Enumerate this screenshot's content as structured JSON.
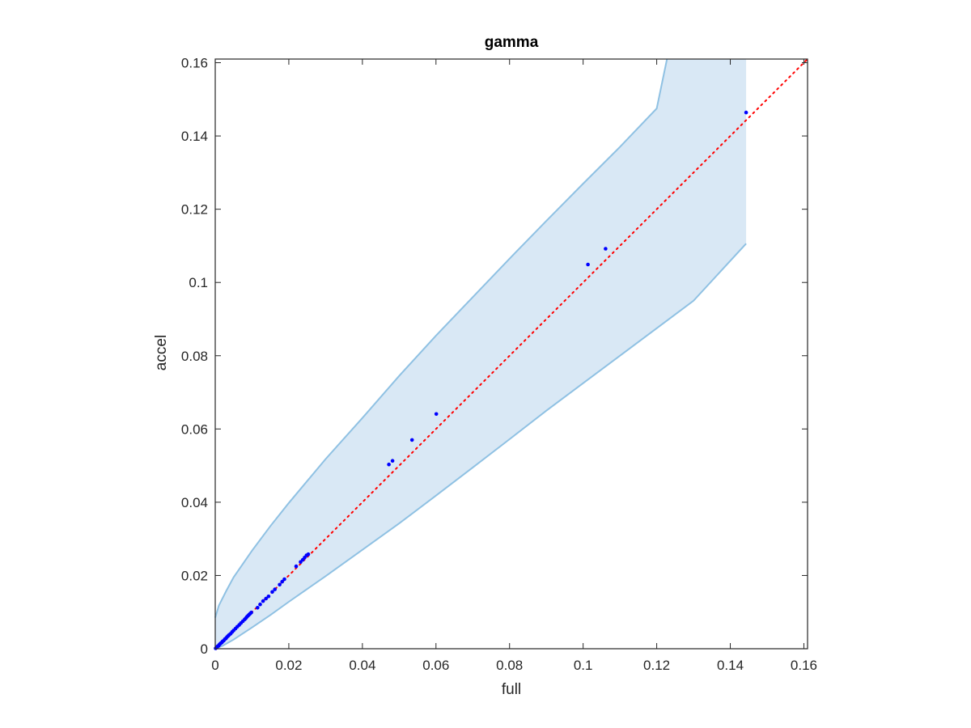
{
  "chart_data": {
    "type": "scatter",
    "title": "gamma",
    "xlabel": "full",
    "ylabel": "accel",
    "xlim": [
      0,
      0.161
    ],
    "ylim": [
      0,
      0.161
    ],
    "grid": false,
    "legend": "none",
    "xticks": [
      0,
      0.02,
      0.04,
      0.06,
      0.08,
      0.1,
      0.12,
      0.14,
      0.16
    ],
    "yticks": [
      0,
      0.02,
      0.04,
      0.06,
      0.08,
      0.1,
      0.12,
      0.14,
      0.16
    ],
    "xtick_labels": [
      "0",
      "0.02",
      "0.04",
      "0.06",
      "0.08",
      "0.1",
      "0.12",
      "0.14",
      "0.16"
    ],
    "ytick_labels": [
      "0",
      "0.02",
      "0.04",
      "0.06",
      "0.08",
      "0.1",
      "0.12",
      "0.14",
      "0.16"
    ],
    "confidence_band": {
      "color": "#d9e8f5",
      "edge_color": "#8fc1e3",
      "x_max": 0.1443,
      "upper": [
        [
          0,
          0.0085
        ],
        [
          0.001,
          0.0118
        ],
        [
          0.003,
          0.0158
        ],
        [
          0.005,
          0.0195
        ],
        [
          0.01,
          0.0268
        ],
        [
          0.015,
          0.0335
        ],
        [
          0.02,
          0.0398
        ],
        [
          0.03,
          0.0518
        ],
        [
          0.04,
          0.063
        ],
        [
          0.05,
          0.0745
        ],
        [
          0.06,
          0.0855
        ],
        [
          0.07,
          0.096
        ],
        [
          0.08,
          0.1065
        ],
        [
          0.09,
          0.1168
        ],
        [
          0.1,
          0.127
        ],
        [
          0.11,
          0.137
        ],
        [
          0.12,
          0.1475
        ],
        [
          0.1228,
          0.161
        ],
        [
          0.1443,
          0.161
        ]
      ],
      "lower": [
        [
          0,
          0
        ],
        [
          0.002,
          0.0008
        ],
        [
          0.005,
          0.0025
        ],
        [
          0.01,
          0.0058
        ],
        [
          0.015,
          0.0092
        ],
        [
          0.02,
          0.0128
        ],
        [
          0.03,
          0.0198
        ],
        [
          0.04,
          0.027
        ],
        [
          0.05,
          0.0342
        ],
        [
          0.06,
          0.0418
        ],
        [
          0.07,
          0.0495
        ],
        [
          0.08,
          0.0572
        ],
        [
          0.09,
          0.065
        ],
        [
          0.1,
          0.0725
        ],
        [
          0.11,
          0.08
        ],
        [
          0.12,
          0.0875
        ],
        [
          0.13,
          0.095
        ],
        [
          0.1443,
          0.1106
        ]
      ]
    },
    "reference_line": {
      "color": "#ff0000",
      "style": "dotted",
      "from": [
        0,
        0
      ],
      "to": [
        0.161,
        0.161
      ]
    },
    "series": [
      {
        "color": "#0000ff",
        "points": [
          [
            0.0001,
            0.0001
          ],
          [
            0.0003,
            0.0003
          ],
          [
            0.0005,
            0.0005
          ],
          [
            0.0007,
            0.0007
          ],
          [
            0.0009,
            0.0008
          ],
          [
            0.0011,
            0.0011
          ],
          [
            0.0013,
            0.0013
          ],
          [
            0.0015,
            0.0015
          ],
          [
            0.0018,
            0.0017
          ],
          [
            0.002,
            0.002
          ],
          [
            0.0023,
            0.0022
          ],
          [
            0.0026,
            0.0026
          ],
          [
            0.0029,
            0.0028
          ],
          [
            0.0032,
            0.0032
          ],
          [
            0.0035,
            0.0035
          ],
          [
            0.0038,
            0.0038
          ],
          [
            0.0042,
            0.0041
          ],
          [
            0.0046,
            0.0046
          ],
          [
            0.005,
            0.005
          ],
          [
            0.0055,
            0.0055
          ],
          [
            0.006,
            0.006
          ],
          [
            0.0065,
            0.0065
          ],
          [
            0.007,
            0.007
          ],
          [
            0.0075,
            0.0075
          ],
          [
            0.008,
            0.008
          ],
          [
            0.0083,
            0.0083
          ],
          [
            0.0086,
            0.0087
          ],
          [
            0.0089,
            0.009
          ],
          [
            0.0092,
            0.0093
          ],
          [
            0.0095,
            0.0096
          ],
          [
            0.0098,
            0.0099
          ],
          [
            0.0115,
            0.0112
          ],
          [
            0.0122,
            0.0121
          ],
          [
            0.013,
            0.013
          ],
          [
            0.0138,
            0.0137
          ],
          [
            0.0145,
            0.0143
          ],
          [
            0.0155,
            0.0155
          ],
          [
            0.0162,
            0.0162
          ],
          [
            0.0175,
            0.0175
          ],
          [
            0.0182,
            0.0183
          ],
          [
            0.0188,
            0.019
          ],
          [
            0.022,
            0.0225
          ],
          [
            0.0232,
            0.0237
          ],
          [
            0.0238,
            0.0243
          ],
          [
            0.0243,
            0.0249
          ],
          [
            0.0248,
            0.0255
          ],
          [
            0.0253,
            0.0258
          ],
          [
            0.0472,
            0.0503
          ],
          [
            0.0482,
            0.0513
          ],
          [
            0.0535,
            0.057
          ],
          [
            0.0601,
            0.0641
          ],
          [
            0.1013,
            0.1049
          ],
          [
            0.1061,
            0.1092
          ],
          [
            0.1443,
            0.1464
          ]
        ]
      }
    ]
  }
}
